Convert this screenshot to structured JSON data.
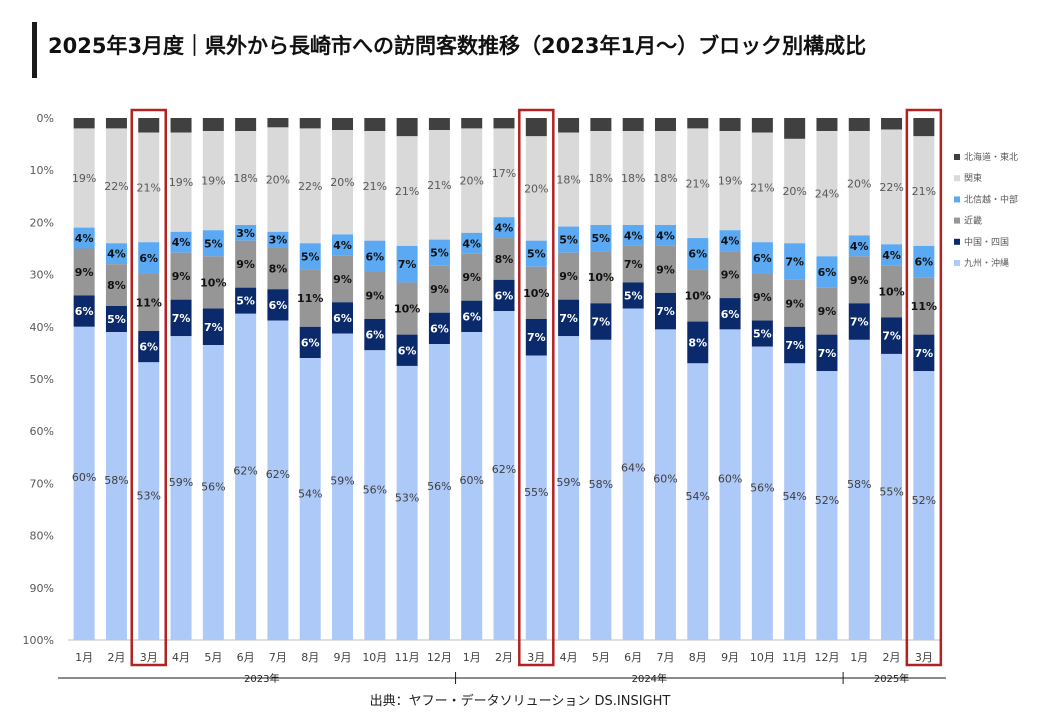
{
  "title": "2025年3月度｜県外から長崎市への訪問客数推移（2023年1月〜）ブロック別構成比",
  "source": "出典：ヤフー・データソリューション DS.INSIGHT",
  "colors": {
    "hokkaido_tohoku": "#404040",
    "kanto": "#d9d9d9",
    "hokushinetsu_chubu": "#5aa9f2",
    "kinki": "#969696",
    "chugoku_shikoku": "#0a2a6b",
    "kyushu_okinawa": "#adc9f7",
    "highlight": "#b22222"
  },
  "chart_data": {
    "type": "bar",
    "stacked": true,
    "orientation": "vertical",
    "categories": [
      "1月",
      "2月",
      "3月",
      "4月",
      "5月",
      "6月",
      "7月",
      "8月",
      "9月",
      "10月",
      "11月",
      "12月",
      "1月",
      "2月",
      "3月",
      "4月",
      "5月",
      "6月",
      "7月",
      "8月",
      "9月",
      "10月",
      "11月",
      "12月",
      "1月",
      "2月",
      "3月"
    ],
    "year_labels": [
      {
        "label": "2023年",
        "start_index": 0,
        "end_index": 11
      },
      {
        "label": "2024年",
        "start_index": 12,
        "end_index": 23
      },
      {
        "label": "2025年",
        "start_index": 24,
        "end_index": 26
      }
    ],
    "highlighted_indices": [
      2,
      14,
      26
    ],
    "y_ticks": [
      "0%",
      "10%",
      "20%",
      "30%",
      "40%",
      "50%",
      "60%",
      "70%",
      "80%",
      "90%",
      "100%"
    ],
    "ylim": [
      0,
      100
    ],
    "y_inverted": true,
    "series_order_top_to_bottom": [
      "北海道・東北",
      "関東",
      "北信越・中部",
      "近畿",
      "中国・四国",
      "九州・沖縄"
    ],
    "series": [
      {
        "name": "北海道・東北",
        "color_key": "hokkaido_tohoku",
        "values": [
          2.0,
          2.0,
          2.8,
          2.8,
          2.5,
          2.5,
          1.8,
          2.0,
          2.3,
          2.5,
          3.5,
          2.3,
          2.0,
          2.0,
          3.5,
          2.8,
          2.5,
          2.5,
          2.5,
          2.0,
          2.5,
          2.8,
          4.0,
          2.5,
          2.5,
          2.2,
          3.5
        ]
      },
      {
        "name": "関東",
        "color_key": "kanto",
        "values": [
          19,
          22,
          21,
          19,
          19,
          18,
          20,
          22,
          20,
          21,
          21,
          21,
          20,
          17,
          20,
          18,
          18,
          18,
          18,
          21,
          19,
          21,
          20,
          24,
          20,
          22,
          21
        ],
        "labels": [
          "19%",
          "22%",
          "21%",
          "19%",
          "19%",
          "18%",
          "20%",
          "22%",
          "20%",
          "21%",
          "21%",
          "21%",
          "20%",
          "17%",
          "20%",
          "18%",
          "18%",
          "18%",
          "18%",
          "21%",
          "19%",
          "21%",
          "20%",
          "24%",
          "20%",
          "22%",
          "21%"
        ]
      },
      {
        "name": "北信越・中部",
        "color_key": "hokushinetsu_chubu",
        "values": [
          4,
          4,
          6,
          4,
          5,
          3,
          3,
          5,
          4,
          6,
          7,
          5,
          4,
          4,
          5,
          5,
          5,
          4,
          4,
          6,
          4,
          6,
          7,
          6,
          4,
          4,
          6
        ],
        "labels": [
          "4%",
          "4%",
          "6%",
          "4%",
          "5%",
          "3%",
          "3%",
          "5%",
          "4%",
          "6%",
          "7%",
          "5%",
          "4%",
          "4%",
          "5%",
          "5%",
          "5%",
          "4%",
          "4%",
          "6%",
          "4%",
          "6%",
          "7%",
          "6%",
          "4%",
          "4%",
          "6%"
        ]
      },
      {
        "name": "近畿",
        "color_key": "kinki",
        "values": [
          9,
          8,
          11,
          9,
          10,
          9,
          8,
          11,
          9,
          9,
          10,
          9,
          9,
          8,
          10,
          9,
          10,
          7,
          9,
          10,
          9,
          9,
          9,
          9,
          9,
          10,
          11
        ],
        "labels": [
          "9%",
          "8%",
          "11%",
          "9%",
          "10%",
          "9%",
          "8%",
          "11%",
          "9%",
          "9%",
          "10%",
          "9%",
          "9%",
          "8%",
          "10%",
          "9%",
          "10%",
          "7%",
          "9%",
          "10%",
          "9%",
          "9%",
          "9%",
          "9%",
          "9%",
          "10%",
          "11%"
        ]
      },
      {
        "name": "中国・四国",
        "color_key": "chugoku_shikoku",
        "values": [
          6,
          5,
          6,
          7,
          7,
          5,
          6,
          6,
          6,
          6,
          6,
          6,
          6,
          6,
          7,
          7,
          7,
          5,
          7,
          8,
          6,
          5,
          7,
          7,
          7,
          7,
          7
        ],
        "labels": [
          "6%",
          "5%",
          "6%",
          "7%",
          "7%",
          "5%",
          "6%",
          "6%",
          "6%",
          "6%",
          "6%",
          "6%",
          "6%",
          "6%",
          "7%",
          "7%",
          "7%",
          "5%",
          "7%",
          "8%",
          "6%",
          "5%",
          "7%",
          "7%",
          "7%",
          "7%",
          "7%"
        ]
      },
      {
        "name": "九州・沖縄",
        "color_key": "kyushu_okinawa",
        "values": [
          60,
          58,
          53,
          59,
          56,
          62,
          62,
          54,
          59,
          56,
          53,
          56,
          60,
          62,
          55,
          59,
          58,
          64,
          60,
          54,
          60,
          56,
          54,
          52,
          58,
          55,
          52
        ],
        "labels": [
          "60%",
          "58%",
          "53%",
          "59%",
          "56%",
          "62%",
          "62%",
          "54%",
          "59%",
          "56%",
          "53%",
          "56%",
          "60%",
          "62%",
          "55%",
          "59%",
          "58%",
          "64%",
          "60%",
          "54%",
          "60%",
          "56%",
          "54%",
          "52%",
          "58%",
          "55%",
          "52%"
        ]
      }
    ],
    "legend": {
      "placement": "right",
      "entries": [
        "北海道・東北",
        "関東",
        "北信越・中部",
        "近畿",
        "中国・四国",
        "九州・沖縄"
      ]
    }
  }
}
